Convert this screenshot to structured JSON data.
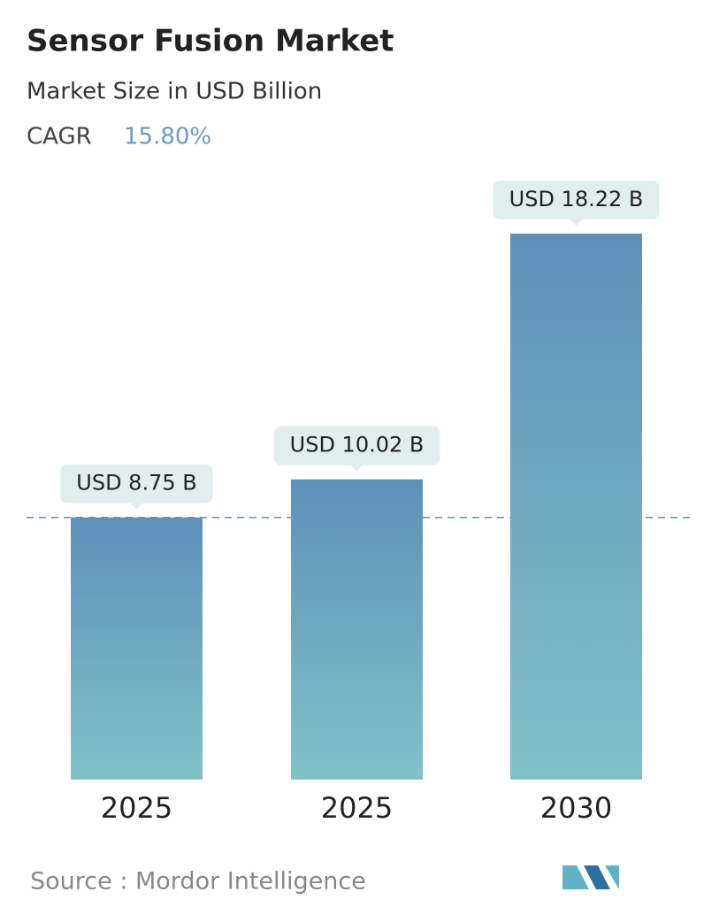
{
  "chart_data": {
    "type": "bar",
    "title": "Sensor Fusion Market",
    "subtitle": "Market Size in USD Billion",
    "cagr_label": "CAGR",
    "cagr_value": "15.80%",
    "categories": [
      "2025",
      "2025",
      "2030"
    ],
    "values": [
      8.75,
      10.02,
      18.22
    ],
    "value_labels": [
      "USD 8.75 B",
      "USD 10.02 B",
      "USD 18.22 B"
    ],
    "source": "Source :  Mordor Intelligence"
  }
}
